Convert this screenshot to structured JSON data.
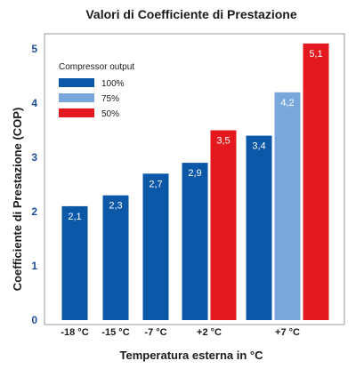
{
  "chart_data": {
    "type": "bar",
    "title": "Valori di Coefficiente di Prestazione",
    "xlabel": "Temperatura esterna in °C",
    "ylabel": "Coefficiente di Prestazione (COP)",
    "ylim": [
      0,
      5
    ],
    "yticks": [
      "0",
      "1",
      "2",
      "3",
      "4",
      "5"
    ],
    "categories": [
      "-18 °C",
      "-15 °C",
      "-7 °C",
      "+2 °C",
      "+7 °C"
    ],
    "legend_title": "Compressor output",
    "legend_position": "top-left",
    "grid": false,
    "series": [
      {
        "name": "100%",
        "color": "#0b57a8",
        "values": [
          2.1,
          2.3,
          2.7,
          2.9,
          3.4
        ],
        "labels": [
          "2,1",
          "2,3",
          "2,7",
          "2,9",
          "3,4"
        ]
      },
      {
        "name": "75%",
        "color": "#7aa7db",
        "values": [
          null,
          null,
          null,
          null,
          4.2
        ],
        "labels": [
          null,
          null,
          null,
          null,
          "4,2"
        ]
      },
      {
        "name": "50%",
        "color": "#e3191f",
        "values": [
          null,
          null,
          null,
          3.5,
          5.1
        ],
        "labels": [
          null,
          null,
          null,
          "3,5",
          "5,1"
        ]
      }
    ]
  }
}
